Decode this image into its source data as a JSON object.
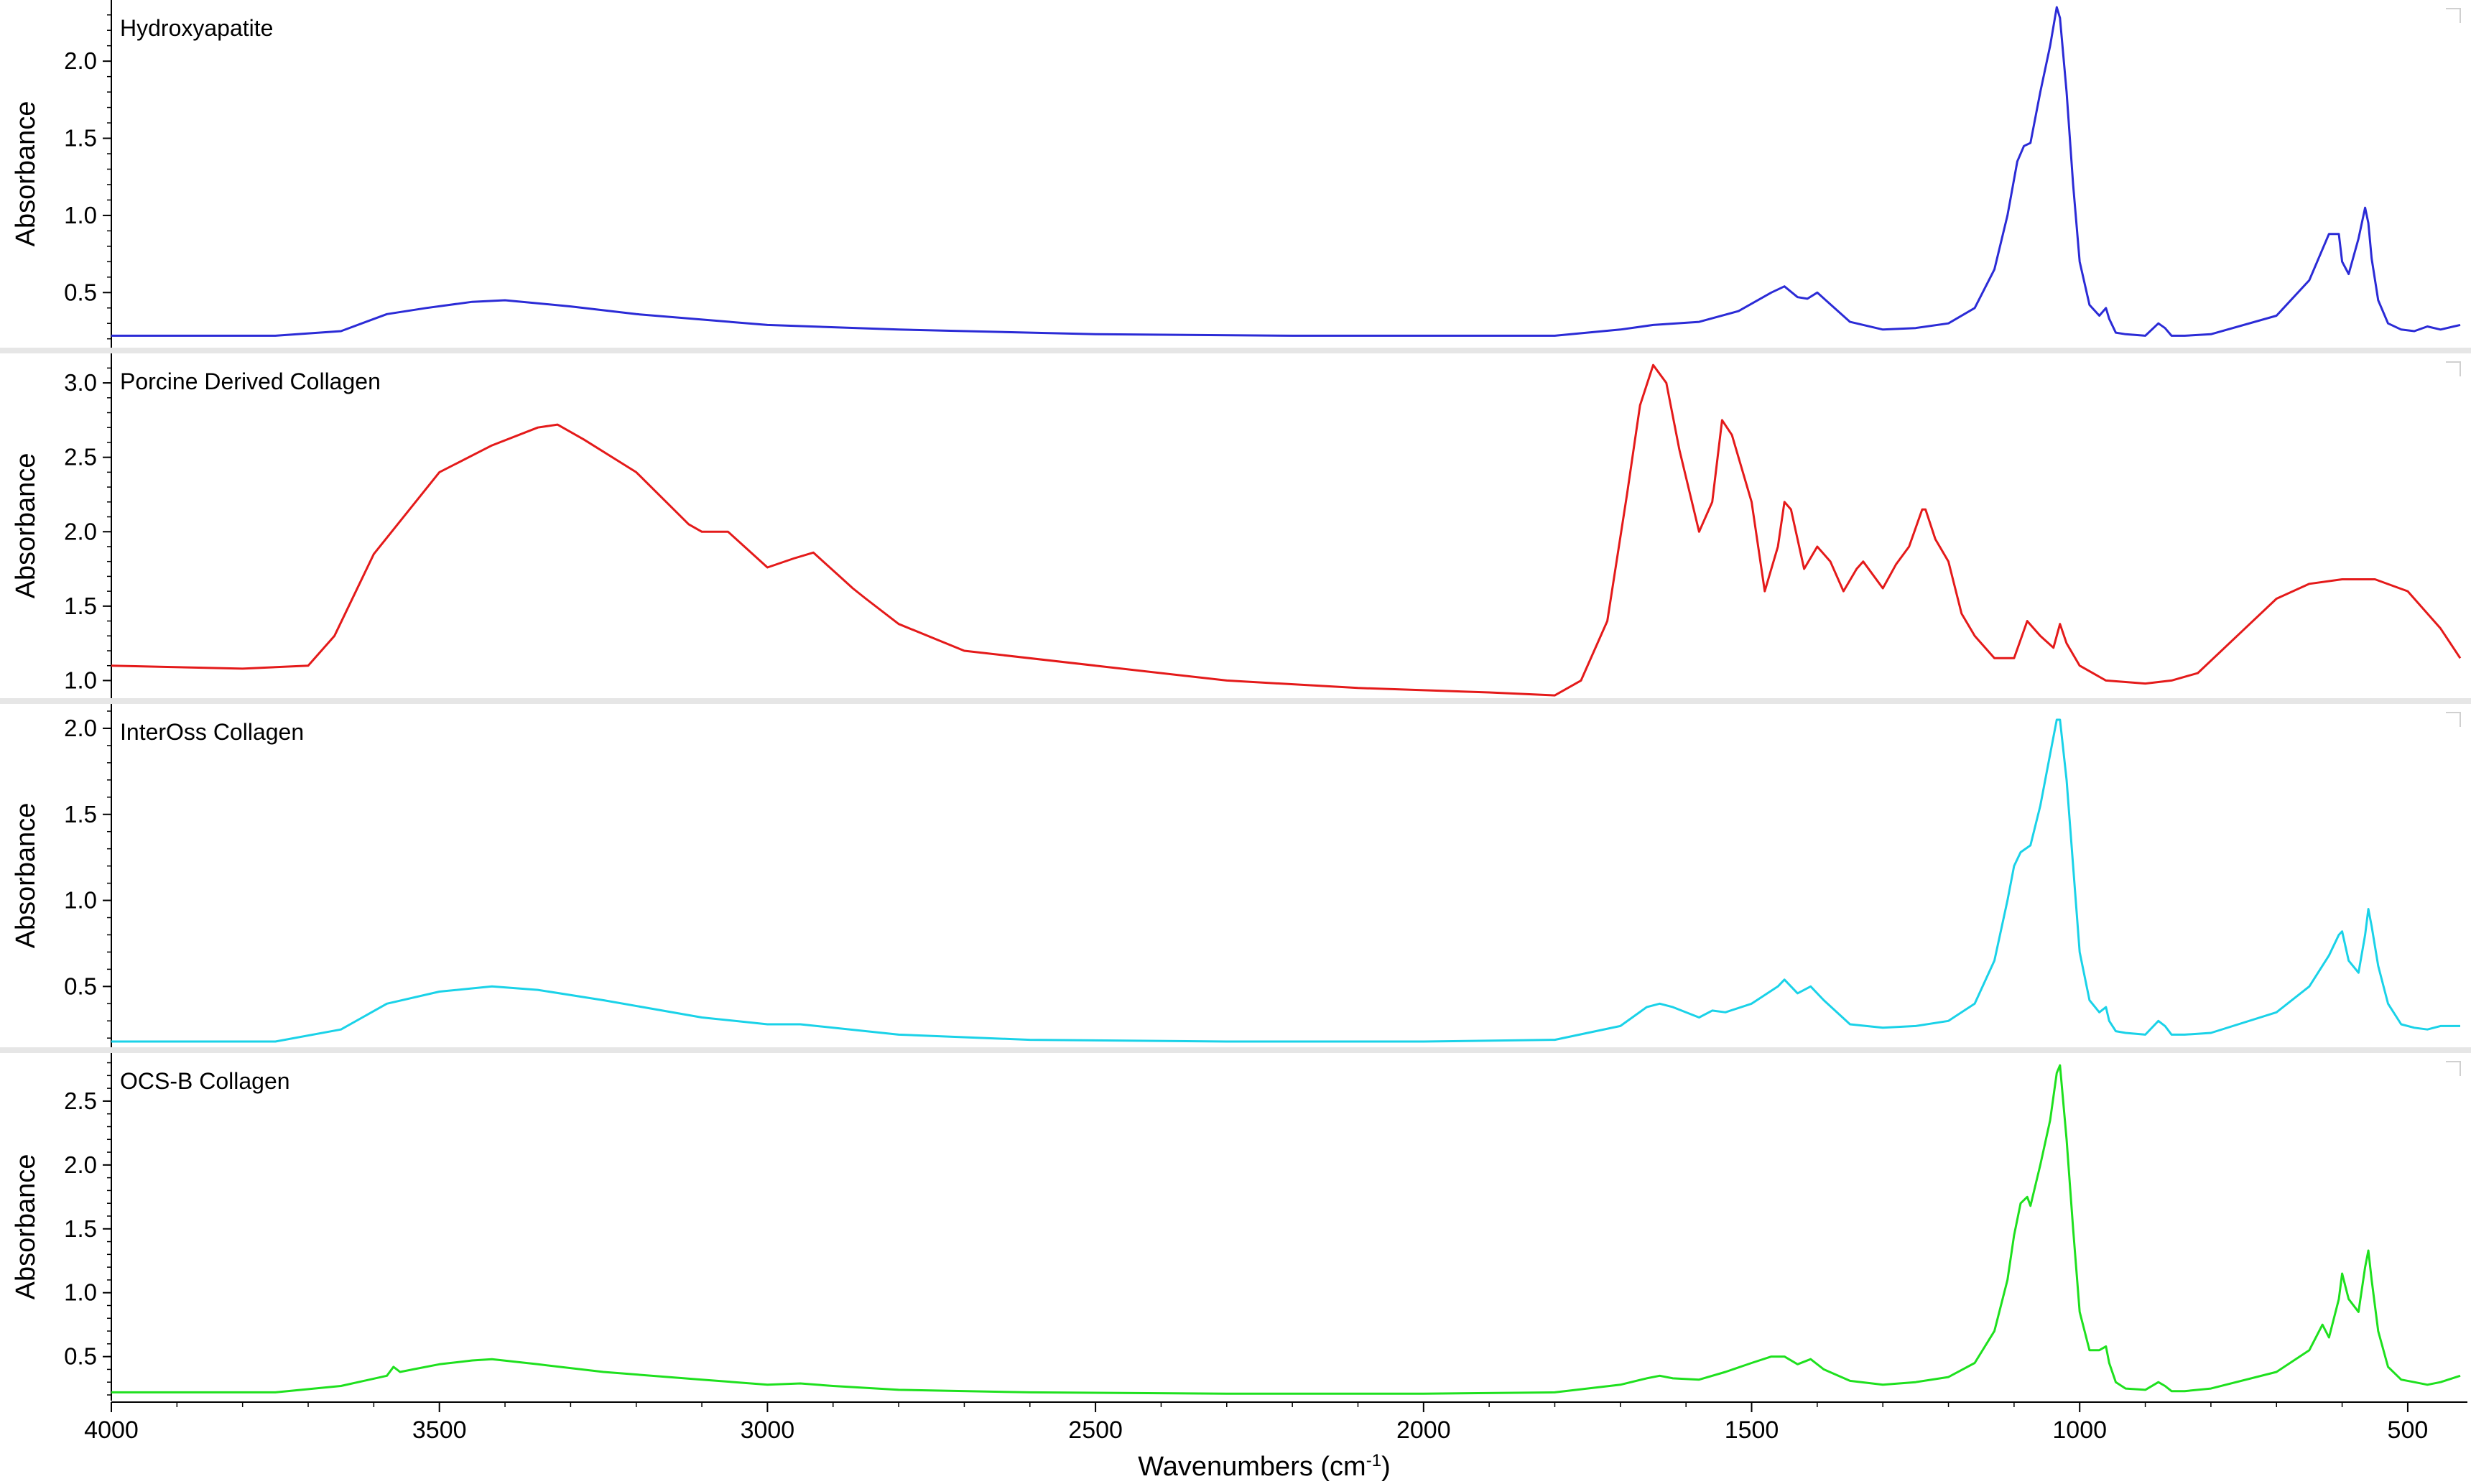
{
  "chart_data": [
    {
      "type": "line",
      "title": "Hydroxyapatite",
      "ylabel": "Absorbance",
      "color": "#2b2bd6",
      "ylim": [
        0.18,
        2.35
      ],
      "yticks": [
        "0.5",
        "1.0",
        "1.5",
        "2.0"
      ],
      "ytick_values": [
        0.5,
        1.0,
        1.5,
        2.0
      ],
      "x": [
        4000,
        3750,
        3650,
        3580,
        3520,
        3450,
        3400,
        3300,
        3200,
        3000,
        2800,
        2500,
        2200,
        2000,
        1800,
        1700,
        1650,
        1580,
        1520,
        1470,
        1450,
        1430,
        1415,
        1400,
        1350,
        1300,
        1250,
        1200,
        1160,
        1130,
        1110,
        1095,
        1085,
        1075,
        1060,
        1045,
        1035,
        1030,
        1020,
        1010,
        1000,
        985,
        970,
        960,
        955,
        945,
        930,
        900,
        880,
        870,
        860,
        840,
        800,
        700,
        650,
        620,
        605,
        600,
        590,
        575,
        565,
        560,
        555,
        545,
        530,
        510,
        490,
        470,
        450,
        430,
        420
      ],
      "y": [
        0.22,
        0.22,
        0.25,
        0.36,
        0.4,
        0.44,
        0.45,
        0.41,
        0.36,
        0.29,
        0.26,
        0.23,
        0.22,
        0.22,
        0.22,
        0.26,
        0.29,
        0.31,
        0.38,
        0.5,
        0.54,
        0.47,
        0.46,
        0.5,
        0.31,
        0.26,
        0.27,
        0.3,
        0.4,
        0.65,
        1.0,
        1.35,
        1.45,
        1.47,
        1.8,
        2.1,
        2.35,
        2.28,
        1.8,
        1.2,
        0.7,
        0.42,
        0.35,
        0.4,
        0.33,
        0.24,
        0.23,
        0.22,
        0.3,
        0.27,
        0.22,
        0.22,
        0.23,
        0.35,
        0.58,
        0.88,
        0.88,
        0.7,
        0.62,
        0.85,
        1.05,
        0.95,
        0.72,
        0.45,
        0.3,
        0.26,
        0.25,
        0.28,
        0.26,
        0.28,
        0.29
      ]
    },
    {
      "type": "line",
      "title": "Porcine Derived Collagen",
      "ylabel": "Absorbance",
      "color": "#e41a1a",
      "ylim": [
        0.92,
        3.15
      ],
      "yticks": [
        "1.0",
        "1.5",
        "2.0",
        "2.5",
        "3.0"
      ],
      "ytick_values": [
        1.0,
        1.5,
        2.0,
        2.5,
        3.0
      ],
      "x": [
        4000,
        3800,
        3700,
        3660,
        3600,
        3500,
        3420,
        3350,
        3320,
        3280,
        3200,
        3120,
        3100,
        3060,
        3000,
        2960,
        2930,
        2890,
        2870,
        2850,
        2800,
        2700,
        2500,
        2300,
        2100,
        1900,
        1800,
        1760,
        1720,
        1690,
        1670,
        1650,
        1630,
        1610,
        1580,
        1560,
        1545,
        1530,
        1500,
        1480,
        1460,
        1450,
        1440,
        1420,
        1400,
        1380,
        1360,
        1340,
        1330,
        1300,
        1280,
        1260,
        1240,
        1235,
        1220,
        1200,
        1180,
        1160,
        1130,
        1100,
        1080,
        1060,
        1040,
        1030,
        1020,
        1000,
        960,
        900,
        860,
        820,
        760,
        700,
        650,
        600,
        550,
        500,
        450,
        420
      ],
      "y": [
        1.1,
        1.08,
        1.1,
        1.3,
        1.85,
        2.4,
        2.58,
        2.7,
        2.72,
        2.62,
        2.4,
        2.05,
        2.0,
        2.0,
        1.76,
        1.82,
        1.86,
        1.7,
        1.62,
        1.55,
        1.38,
        1.2,
        1.1,
        1.0,
        0.95,
        0.92,
        0.9,
        1.0,
        1.4,
        2.25,
        2.85,
        3.12,
        3.0,
        2.55,
        2.0,
        2.2,
        2.75,
        2.65,
        2.2,
        1.6,
        1.9,
        2.2,
        2.15,
        1.75,
        1.9,
        1.8,
        1.6,
        1.75,
        1.8,
        1.62,
        1.78,
        1.9,
        2.15,
        2.15,
        1.95,
        1.8,
        1.45,
        1.3,
        1.15,
        1.15,
        1.4,
        1.3,
        1.22,
        1.38,
        1.25,
        1.1,
        1.0,
        0.98,
        1.0,
        1.05,
        1.3,
        1.55,
        1.65,
        1.68,
        1.68,
        1.6,
        1.35,
        1.15
      ]
    },
    {
      "type": "line",
      "title": "InterOss Collagen",
      "ylabel": "Absorbance",
      "color": "#1ad2e8",
      "ylim": [
        0.18,
        2.1
      ],
      "yticks": [
        "0.5",
        "1.0",
        "1.5",
        "2.0"
      ],
      "ytick_values": [
        0.5,
        1.0,
        1.5,
        2.0
      ],
      "x": [
        4000,
        3750,
        3650,
        3580,
        3500,
        3420,
        3350,
        3250,
        3100,
        3000,
        2950,
        2800,
        2600,
        2300,
        2000,
        1800,
        1700,
        1660,
        1640,
        1620,
        1580,
        1560,
        1540,
        1500,
        1460,
        1450,
        1430,
        1410,
        1390,
        1350,
        1300,
        1250,
        1200,
        1160,
        1130,
        1110,
        1100,
        1090,
        1075,
        1060,
        1045,
        1035,
        1030,
        1020,
        1010,
        1000,
        985,
        970,
        960,
        955,
        945,
        930,
        900,
        880,
        870,
        860,
        840,
        800,
        700,
        650,
        620,
        605,
        600,
        590,
        575,
        565,
        560,
        555,
        545,
        530,
        510,
        490,
        470,
        450,
        420
      ],
      "y": [
        0.18,
        0.18,
        0.25,
        0.4,
        0.47,
        0.5,
        0.48,
        0.42,
        0.32,
        0.28,
        0.28,
        0.22,
        0.19,
        0.18,
        0.18,
        0.19,
        0.27,
        0.38,
        0.4,
        0.38,
        0.32,
        0.36,
        0.35,
        0.4,
        0.5,
        0.54,
        0.46,
        0.5,
        0.42,
        0.28,
        0.26,
        0.27,
        0.3,
        0.4,
        0.65,
        1.0,
        1.2,
        1.28,
        1.32,
        1.55,
        1.85,
        2.05,
        2.05,
        1.7,
        1.2,
        0.7,
        0.42,
        0.35,
        0.38,
        0.3,
        0.24,
        0.23,
        0.22,
        0.3,
        0.27,
        0.22,
        0.22,
        0.23,
        0.35,
        0.5,
        0.68,
        0.8,
        0.82,
        0.65,
        0.58,
        0.8,
        0.95,
        0.85,
        0.62,
        0.4,
        0.28,
        0.26,
        0.25,
        0.27,
        0.27
      ]
    },
    {
      "type": "line",
      "title": "OCS-B Collagen",
      "ylabel": "Absorbance",
      "color": "#1ee01e",
      "ylim": [
        0.2,
        2.82
      ],
      "yticks": [
        "0.5",
        "1.0",
        "1.5",
        "2.0",
        "2.5"
      ],
      "ytick_values": [
        0.5,
        1.0,
        1.5,
        2.0,
        2.5
      ],
      "x": [
        4000,
        3750,
        3650,
        3580,
        3570,
        3560,
        3540,
        3500,
        3450,
        3420,
        3350,
        3250,
        3100,
        3000,
        2950,
        2900,
        2800,
        2600,
        2300,
        2000,
        1800,
        1700,
        1660,
        1640,
        1620,
        1580,
        1540,
        1500,
        1470,
        1450,
        1430,
        1410,
        1390,
        1350,
        1300,
        1250,
        1200,
        1160,
        1130,
        1110,
        1100,
        1090,
        1080,
        1075,
        1060,
        1045,
        1035,
        1030,
        1020,
        1010,
        1000,
        985,
        970,
        960,
        955,
        945,
        930,
        900,
        880,
        870,
        860,
        840,
        800,
        700,
        650,
        630,
        620,
        605,
        600,
        590,
        575,
        565,
        560,
        555,
        545,
        530,
        510,
        490,
        470,
        450,
        420
      ],
      "y": [
        0.22,
        0.22,
        0.27,
        0.35,
        0.42,
        0.38,
        0.4,
        0.44,
        0.47,
        0.48,
        0.44,
        0.38,
        0.32,
        0.28,
        0.29,
        0.27,
        0.24,
        0.22,
        0.21,
        0.21,
        0.22,
        0.28,
        0.33,
        0.35,
        0.33,
        0.32,
        0.38,
        0.45,
        0.5,
        0.5,
        0.44,
        0.48,
        0.4,
        0.31,
        0.28,
        0.3,
        0.34,
        0.45,
        0.7,
        1.1,
        1.45,
        1.7,
        1.75,
        1.68,
        2.0,
        2.35,
        2.72,
        2.78,
        2.2,
        1.5,
        0.85,
        0.55,
        0.55,
        0.58,
        0.45,
        0.3,
        0.25,
        0.24,
        0.3,
        0.27,
        0.23,
        0.23,
        0.25,
        0.38,
        0.55,
        0.75,
        0.65,
        0.95,
        1.15,
        0.95,
        0.85,
        1.2,
        1.33,
        1.1,
        0.7,
        0.42,
        0.32,
        0.3,
        0.28,
        0.3,
        0.35
      ]
    }
  ],
  "xaxis": {
    "xlim": [
      4000,
      420
    ],
    "ticks": [
      "4000",
      "3500",
      "3000",
      "2500",
      "2000",
      "1500",
      "1000",
      "500"
    ],
    "tick_values": [
      4000,
      3500,
      3000,
      2500,
      2000,
      1500,
      1000,
      500
    ],
    "label_main": "Wavenumbers (cm",
    "label_sup": "-1",
    "label_end": ")"
  }
}
